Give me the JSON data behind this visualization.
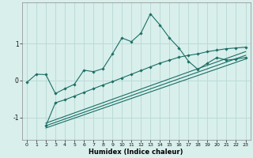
{
  "title": "",
  "xlabel": "Humidex (Indice chaleur)",
  "ylabel": "",
  "bg_color": "#d8efec",
  "grid_color": "#b8d8d4",
  "line_color": "#1a6e64",
  "xlim": [
    -0.5,
    23.5
  ],
  "ylim": [
    -1.6,
    2.1
  ],
  "yticks": [
    -1,
    0,
    1
  ],
  "xticks": [
    0,
    1,
    2,
    3,
    4,
    5,
    6,
    7,
    8,
    9,
    10,
    11,
    12,
    13,
    14,
    15,
    16,
    17,
    18,
    19,
    20,
    21,
    22,
    23
  ],
  "curve1_x": [
    0,
    1,
    2,
    3,
    4,
    5,
    6,
    7,
    8,
    9,
    10,
    11,
    12,
    13,
    14,
    15,
    16,
    17,
    18,
    19,
    20,
    21,
    22,
    23
  ],
  "curve1_y": [
    -0.05,
    0.17,
    0.16,
    -0.35,
    -0.22,
    -0.1,
    0.28,
    0.24,
    0.32,
    0.72,
    1.15,
    1.05,
    1.28,
    1.8,
    1.5,
    1.15,
    0.88,
    0.52,
    0.3,
    0.47,
    0.62,
    0.55,
    0.58,
    0.62
  ],
  "curve2_x": [
    2,
    3,
    4,
    5,
    6,
    7,
    8,
    9,
    10,
    11,
    12,
    13,
    14,
    15,
    16,
    17,
    18,
    19,
    20,
    21,
    22,
    23
  ],
  "curve2_y": [
    -1.22,
    -0.6,
    -0.52,
    -0.42,
    -0.32,
    -0.22,
    -0.12,
    -0.03,
    0.07,
    0.17,
    0.27,
    0.37,
    0.47,
    0.55,
    0.63,
    0.68,
    0.72,
    0.78,
    0.82,
    0.86,
    0.88,
    0.9
  ],
  "line1_x": [
    2,
    23
  ],
  "line1_y": [
    -1.28,
    0.58
  ],
  "line2_x": [
    2,
    23
  ],
  "line2_y": [
    -1.22,
    0.68
  ],
  "line3_x": [
    2,
    23
  ],
  "line3_y": [
    -1.15,
    0.78
  ]
}
